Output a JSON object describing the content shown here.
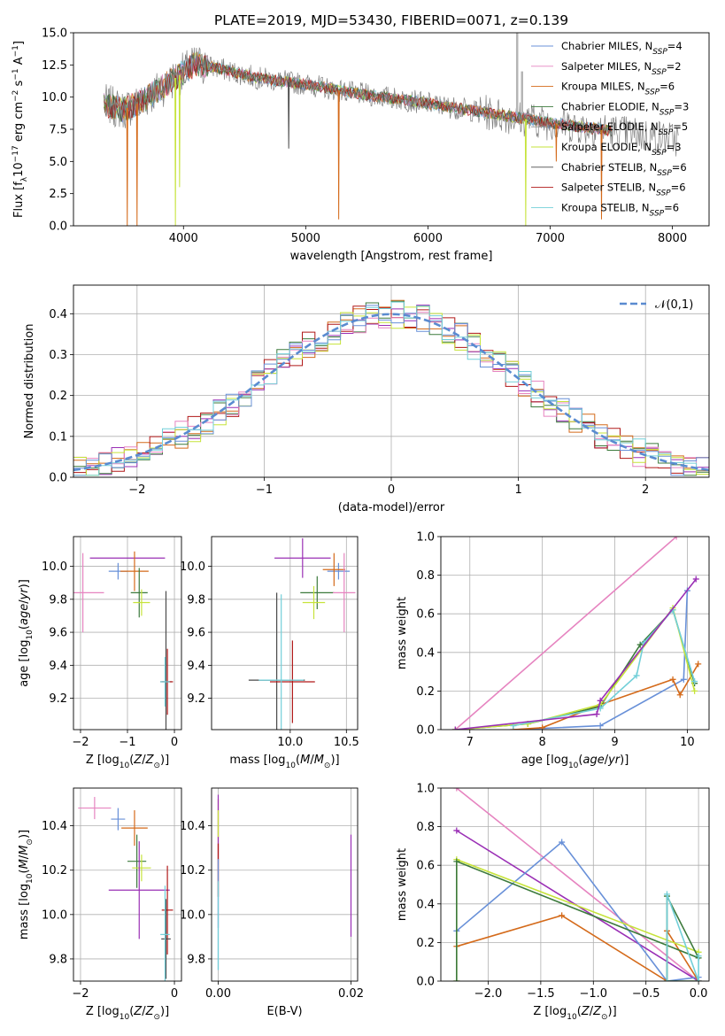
{
  "title": "PLATE=2019, MJD=53430, FIBERID=0071, z=0.139",
  "colors": [
    "#6890d8",
    "#e684c0",
    "#d46a1a",
    "#3c7a3c",
    "#8a8a8a",
    "#c6e33a",
    "#4a4a4a",
    "#b01818",
    "#72cfd8",
    "#9a2fb5"
  ],
  "models": [
    {
      "name": "Chabrier MILES, N",
      "sub": "SSP",
      "tail": "=4",
      "color": "#6890d8"
    },
    {
      "name": "Salpeter MILES, N",
      "sub": "SSP",
      "tail": "=2",
      "color": "#e684c0"
    },
    {
      "name": "Kroupa MILES, N",
      "sub": "SSP",
      "tail": "=6",
      "color": "#d46a1a"
    },
    {
      "name": "Chabrier ELODIE, N",
      "sub": "SSP",
      "tail": "=3",
      "color": "#3c7a3c"
    },
    {
      "name": "Salpeter ELODIE, N",
      "sub": "SSP",
      "tail": "=5",
      "color": "#8a8a8a"
    },
    {
      "name": "Kroupa ELODIE, N",
      "sub": "SSP",
      "tail": "=3",
      "color": "#c6e33a"
    },
    {
      "name": "Chabrier STELIB, N",
      "sub": "SSP",
      "tail": "=6",
      "color": "#4a4a4a"
    },
    {
      "name": "Salpeter STELIB, N",
      "sub": "SSP",
      "tail": "=6",
      "color": "#b01818"
    },
    {
      "name": "Kroupa STELIB, N",
      "sub": "SSP",
      "tail": "=6",
      "color": "#72cfd8"
    }
  ],
  "chart_data": [
    {
      "id": "spectrum",
      "type": "line",
      "xlabel": "wavelength [Angstrom, rest frame]",
      "ylabel_parts": [
        "Flux [f",
        "λ",
        "10",
        "−17",
        " erg cm",
        "−2",
        " s",
        "−1",
        " A",
        "−1",
        "]"
      ],
      "xlim": [
        3100,
        8300
      ],
      "ylim": [
        0,
        15
      ],
      "xticks": [
        4000,
        5000,
        6000,
        7000,
        8000
      ],
      "yticks": [
        0.0,
        2.5,
        5.0,
        7.5,
        10.0,
        12.5,
        15.0
      ],
      "continuum": {
        "x": [
          3350,
          3500,
          3650,
          3800,
          3950,
          4100,
          4300,
          4600,
          5000,
          5400,
          5800,
          6200,
          6600,
          7000,
          7400,
          7800,
          8050
        ],
        "y": [
          9.5,
          9.0,
          9.6,
          10.6,
          11.6,
          12.6,
          12.2,
          11.5,
          11.0,
          10.3,
          9.8,
          9.2,
          8.6,
          8.0,
          7.5,
          7.0,
          6.7
        ]
      },
      "data_range": [
        3350,
        8050
      ],
      "model_range": [
        3350,
        7500
      ],
      "absorption_features": [
        {
          "x": 3540,
          "depth_to": 0.0,
          "series": 2
        },
        {
          "x": 3620,
          "depth_to": 0.0,
          "series": 2
        },
        {
          "x": 3934,
          "depth_to": 0.0,
          "series": 5
        },
        {
          "x": 3968,
          "depth_to": 3.0,
          "series": 5
        },
        {
          "x": 4861,
          "depth_to": 6.0,
          "series": 6
        },
        {
          "x": 5270,
          "depth_to": 0.5,
          "series": 2
        },
        {
          "x": 6800,
          "depth_to": 0.0,
          "series": 5
        },
        {
          "x": 7050,
          "depth_to": 5.0,
          "series": 2
        },
        {
          "x": 7420,
          "depth_to": 0.5,
          "series": 2
        }
      ],
      "emission_spikes": [
        {
          "x": 6730,
          "y": 15.0
        },
        {
          "x": 6770,
          "y": 12.0
        }
      ]
    },
    {
      "id": "residuals",
      "type": "histogram",
      "xlabel": "(data-model)/error",
      "ylabel": "Normed distribution",
      "xlim": [
        -2.5,
        2.5
      ],
      "ylim": [
        0,
        0.47
      ],
      "xticks": [
        -2,
        -1,
        0,
        1,
        2
      ],
      "yticks": [
        0.0,
        0.1,
        0.2,
        0.3,
        0.4
      ],
      "bin_width": 0.1,
      "reference_label": "𝒩(0,1)",
      "reference_color": "#5a8bd0",
      "series_colors": [
        "#d46a1a",
        "#9a2fb5",
        "#3c7a3c",
        "#b01818",
        "#e684c0",
        "#c6e33a",
        "#6890d8",
        "#72cfd8"
      ]
    },
    {
      "id": "age-vs-z",
      "type": "errorbar",
      "xlabel": "Z [log",
      "xlabel_sub": "10",
      "xlabel_tail": "(Z/Z",
      "xlabel_sun": "⊙",
      "xlabel_end": ")]",
      "ylabel": "age  [log",
      "ylabel_sub": "10",
      "ylabel_tail": "(age/yr)]",
      "xlim": [
        -2.15,
        0.15
      ],
      "ylim": [
        9.01,
        10.18
      ],
      "xticks": [
        -2,
        -1,
        0
      ],
      "yticks": [
        9.2,
        9.4,
        9.6,
        9.8,
        10.0
      ],
      "points": [
        {
          "x": -1.0,
          "y": 10.05,
          "xerr": 0.8,
          "yerr": 0.0,
          "color": "#9a2fb5"
        },
        {
          "x": -1.2,
          "y": 9.97,
          "xerr": 0.2,
          "yerr": 0.05,
          "color": "#6890d8"
        },
        {
          "x": -0.85,
          "y": 9.97,
          "xerr": 0.3,
          "yerr": 0.12,
          "color": "#d46a1a"
        },
        {
          "x": -0.75,
          "y": 9.84,
          "xerr": 0.18,
          "yerr": 0.15,
          "color": "#3c7a3c"
        },
        {
          "x": -0.7,
          "y": 9.78,
          "xerr": 0.18,
          "yerr": 0.08,
          "color": "#c6e33a"
        },
        {
          "x": -1.95,
          "y": 9.84,
          "xerr": 0.45,
          "yerr": 0.24,
          "color": "#e684c0"
        },
        {
          "x": -0.18,
          "y": 9.3,
          "xerr": 0.12,
          "yerr": 0.55,
          "color": "#4a4a4a"
        },
        {
          "x": -0.15,
          "y": 9.3,
          "xerr": 0.12,
          "yerr": 0.2,
          "color": "#b01818"
        },
        {
          "x": -0.2,
          "y": 9.3,
          "xerr": 0.1,
          "yerr": 0.15,
          "color": "#72cfd8"
        }
      ]
    },
    {
      "id": "age-vs-mass",
      "type": "errorbar",
      "xlabel": "mass [log",
      "xlabel_sub": "10",
      "xlabel_tail": "(M/M",
      "xlabel_sun": "⊙",
      "xlabel_end": ")]",
      "xlim": [
        9.3,
        10.6
      ],
      "ylim": [
        9.01,
        10.18
      ],
      "xticks": [
        10.0,
        10.5
      ],
      "yticks": [
        9.2,
        9.4,
        9.6,
        9.8,
        10.0
      ],
      "points": [
        {
          "x": 10.11,
          "y": 10.05,
          "xerr": 0.25,
          "yerr": 0.12,
          "color": "#9a2fb5"
        },
        {
          "x": 10.43,
          "y": 9.97,
          "xerr": 0.1,
          "yerr": 0.05,
          "color": "#6890d8"
        },
        {
          "x": 10.39,
          "y": 9.98,
          "xerr": 0.1,
          "yerr": 0.1,
          "color": "#d46a1a"
        },
        {
          "x": 10.24,
          "y": 9.84,
          "xerr": 0.15,
          "yerr": 0.1,
          "color": "#3c7a3c"
        },
        {
          "x": 10.21,
          "y": 9.78,
          "xerr": 0.1,
          "yerr": 0.1,
          "color": "#c6e33a"
        },
        {
          "x": 10.48,
          "y": 9.84,
          "xerr": 0.1,
          "yerr": 0.24,
          "color": "#e684c0"
        },
        {
          "x": 9.88,
          "y": 9.31,
          "xerr": 0.25,
          "yerr": 0.53,
          "color": "#4a4a4a"
        },
        {
          "x": 10.02,
          "y": 9.3,
          "xerr": 0.2,
          "yerr": 0.25,
          "color": "#b01818"
        },
        {
          "x": 9.92,
          "y": 9.31,
          "xerr": 0.2,
          "yerr": 0.52,
          "color": "#72cfd8"
        }
      ]
    },
    {
      "id": "mass-weight-vs-age",
      "type": "line",
      "xlabel": "age  [log",
      "xlabel_sub": "10",
      "xlabel_tail": "(age/yr)]",
      "ylabel": "mass weight",
      "xlim": [
        6.6,
        10.3
      ],
      "ylim": [
        0,
        1
      ],
      "xticks": [
        7,
        8,
        9,
        10
      ],
      "yticks": [
        0.0,
        0.2,
        0.4,
        0.6,
        0.8,
        1.0
      ],
      "series": [
        {
          "color": "#e684c0",
          "x": [
            6.8,
            9.85
          ],
          "y": [
            0.0,
            1.0
          ]
        },
        {
          "color": "#6890d8",
          "x": [
            7.6,
            8.8,
            9.95,
            10.0
          ],
          "y": [
            0.0,
            0.02,
            0.26,
            0.72
          ]
        },
        {
          "color": "#d46a1a",
          "x": [
            7.6,
            8.0,
            8.8,
            9.8,
            9.9,
            10.15
          ],
          "y": [
            0.0,
            0.01,
            0.13,
            0.26,
            0.18,
            0.34
          ]
        },
        {
          "color": "#3c7a3c",
          "x": [
            6.8,
            7.8,
            8.8,
            9.35,
            9.8,
            10.1
          ],
          "y": [
            0.0,
            0.03,
            0.12,
            0.44,
            0.62,
            0.24
          ]
        },
        {
          "color": "#c6e33a",
          "x": [
            6.8,
            7.8,
            8.8,
            9.8,
            10.1
          ],
          "y": [
            0.0,
            0.03,
            0.13,
            0.63,
            0.2
          ]
        },
        {
          "color": "#72cfd8",
          "x": [
            7.6,
            8.8,
            9.3,
            9.4,
            9.8,
            10.1
          ],
          "y": [
            0.02,
            0.11,
            0.28,
            0.45,
            0.62,
            0.25
          ]
        },
        {
          "color": "#9a2fb5",
          "x": [
            6.8,
            8.75,
            8.8,
            10.12
          ],
          "y": [
            0.0,
            0.08,
            0.15,
            0.78
          ]
        }
      ]
    },
    {
      "id": "mass-vs-z",
      "type": "errorbar",
      "xlabel": "Z [log",
      "xlabel_sub": "10",
      "xlabel_tail": "(Z/Z",
      "xlabel_sun": "⊙",
      "xlabel_end": ")]",
      "ylabel": "mass [log",
      "ylabel_sub": "10",
      "ylabel_tail": "(M/M",
      "ylabel_sun": "⊙",
      "ylabel_end": ")]",
      "xlim": [
        -2.15,
        0.15
      ],
      "ylim": [
        9.7,
        10.57
      ],
      "xticks": [
        -2,
        0
      ],
      "yticks": [
        9.8,
        10.0,
        10.2,
        10.4
      ],
      "points": [
        {
          "x": -1.7,
          "y": 10.48,
          "xerr": 0.35,
          "yerr": 0.05,
          "color": "#e684c0"
        },
        {
          "x": -1.2,
          "y": 10.43,
          "xerr": 0.15,
          "yerr": 0.05,
          "color": "#6890d8"
        },
        {
          "x": -0.85,
          "y": 10.39,
          "xerr": 0.28,
          "yerr": 0.08,
          "color": "#d46a1a"
        },
        {
          "x": -0.8,
          "y": 10.24,
          "xerr": 0.2,
          "yerr": 0.12,
          "color": "#3c7a3c"
        },
        {
          "x": -0.7,
          "y": 10.21,
          "xerr": 0.2,
          "yerr": 0.06,
          "color": "#c6e33a"
        },
        {
          "x": -0.75,
          "y": 10.11,
          "xerr": 0.65,
          "yerr": 0.22,
          "color": "#9a2fb5"
        },
        {
          "x": -0.15,
          "y": 10.02,
          "xerr": 0.12,
          "yerr": 0.2,
          "color": "#b01818"
        },
        {
          "x": -0.18,
          "y": 9.89,
          "xerr": 0.1,
          "yerr": 0.18,
          "color": "#4a4a4a"
        },
        {
          "x": -0.2,
          "y": 9.91,
          "xerr": 0.1,
          "yerr": 0.22,
          "color": "#72cfd8"
        }
      ]
    },
    {
      "id": "mass-vs-ebv",
      "type": "errorbar",
      "xlabel": "E(B-V)",
      "xlim": [
        -0.001,
        0.021
      ],
      "ylim": [
        9.7,
        10.57
      ],
      "xticks": [
        0.0,
        0.02
      ],
      "yticks": [
        9.8,
        10.0,
        10.2,
        10.4
      ],
      "points": [
        {
          "x": 0.0,
          "y": 10.3,
          "xerr": 0,
          "yerr": 0.22,
          "color": "#d46a1a"
        },
        {
          "x": 0.0,
          "y": 10.24,
          "xerr": 0,
          "yerr": 0.3,
          "color": "#9a2fb5"
        },
        {
          "x": 0.0,
          "y": 10.2,
          "xerr": 0,
          "yerr": 0.12,
          "color": "#b01818"
        },
        {
          "x": 0.0,
          "y": 10.0,
          "xerr": 0,
          "yerr": 0.25,
          "color": "#6890d8"
        },
        {
          "x": 0.0,
          "y": 9.95,
          "xerr": 0,
          "yerr": 0.2,
          "color": "#72cfd8"
        },
        {
          "x": 0.0,
          "y": 10.41,
          "xerr": 0,
          "yerr": 0.06,
          "color": "#c6e33a"
        },
        {
          "x": 0.02,
          "y": 10.13,
          "xerr": 0,
          "yerr": 0.23,
          "color": "#9a2fb5"
        }
      ]
    },
    {
      "id": "mass-weight-vs-z",
      "type": "line",
      "xlabel": "Z [log",
      "xlabel_sub": "10",
      "xlabel_tail": "(Z/Z",
      "xlabel_sun": "⊙",
      "xlabel_end": ")]",
      "ylabel": "mass weight",
      "xlim": [
        -2.45,
        0.1
      ],
      "ylim": [
        0,
        1
      ],
      "xticks": [
        -2.0,
        -1.5,
        -1.0,
        -0.5,
        0.0
      ],
      "yticks": [
        0.0,
        0.2,
        0.4,
        0.6,
        0.8,
        1.0
      ],
      "series": [
        {
          "color": "#e684c0",
          "x": [
            -2.3,
            0.0
          ],
          "y": [
            1.0,
            0.0
          ]
        },
        {
          "color": "#9a2fb5",
          "x": [
            -2.3,
            0.0
          ],
          "y": [
            0.78,
            0.0
          ]
        },
        {
          "color": "#6890d8",
          "x": [
            -2.3,
            -1.3,
            -0.3,
            0.0
          ],
          "y": [
            0.26,
            0.72,
            0.0,
            0.02
          ]
        },
        {
          "color": "#d46a1a",
          "x": [
            -2.3,
            -1.3,
            -0.3,
            -0.3,
            0.0
          ],
          "y": [
            0.18,
            0.34,
            0.0,
            0.26,
            0.0
          ]
        },
        {
          "color": "#c6e33a",
          "x": [
            -2.3,
            -2.3,
            0.0
          ],
          "y": [
            0.0,
            0.63,
            0.15
          ]
        },
        {
          "color": "#3c7a3c",
          "x": [
            -2.3,
            -2.3,
            0.0,
            -0.3,
            -0.3,
            0.0
          ],
          "y": [
            0.0,
            0.62,
            0.12,
            0.44,
            0.0,
            0.0
          ]
        },
        {
          "color": "#72cfd8",
          "x": [
            -0.3,
            -0.3,
            0.0,
            0.0
          ],
          "y": [
            0.0,
            0.45,
            0.0,
            0.13
          ]
        }
      ]
    }
  ]
}
